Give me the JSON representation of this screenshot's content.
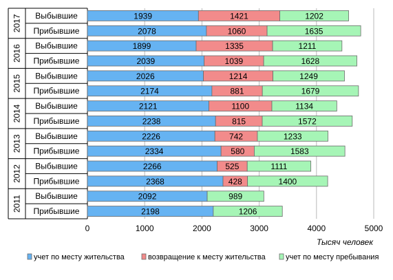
{
  "chart_data": {
    "type": "bar",
    "orientation": "horizontal",
    "stacked": true,
    "xlabel": "Тысяч человек",
    "xlim": [
      0,
      5000
    ],
    "xticks": [
      0,
      1000,
      2000,
      3000,
      4000,
      5000
    ],
    "grid": "vertical",
    "legend_position": "bottom",
    "groups": [
      "2017",
      "2016",
      "2015",
      "2014",
      "2013",
      "2012",
      "2011"
    ],
    "group_rows": [
      "Выбывшие",
      "Прибывшие"
    ],
    "categories": [
      "2017 Выбывшие",
      "2017 Прибывшие",
      "2016 Выбывшие",
      "2016 Прибывшие",
      "2015 Выбывшие",
      "2015 Прибывшие",
      "2014 Выбывшие",
      "2014 Прибывшие",
      "2013 Выбывшие",
      "2013 Прибывшие",
      "2012 Выбывшие",
      "2012 Прибывшие",
      "2011 Выбывшие",
      "2011 Прибывшие"
    ],
    "series": [
      {
        "name": "учет по месту жительства",
        "color": "#66b3f2",
        "values": [
          1939,
          2078,
          1899,
          2039,
          2026,
          2174,
          2121,
          2238,
          2226,
          2334,
          2266,
          2368,
          2092,
          2198
        ]
      },
      {
        "name": "возвращение к месту жительства",
        "color": "#f28b8b",
        "values": [
          1421,
          1060,
          1335,
          1039,
          1214,
          881,
          1100,
          815,
          742,
          580,
          525,
          428,
          null,
          null
        ]
      },
      {
        "name": "учет по месту пребывания",
        "color": "#a6f5b6",
        "values": [
          1202,
          1635,
          1211,
          1628,
          1249,
          1679,
          1134,
          1572,
          1233,
          1583,
          1111,
          1400,
          989,
          1206
        ]
      }
    ]
  }
}
